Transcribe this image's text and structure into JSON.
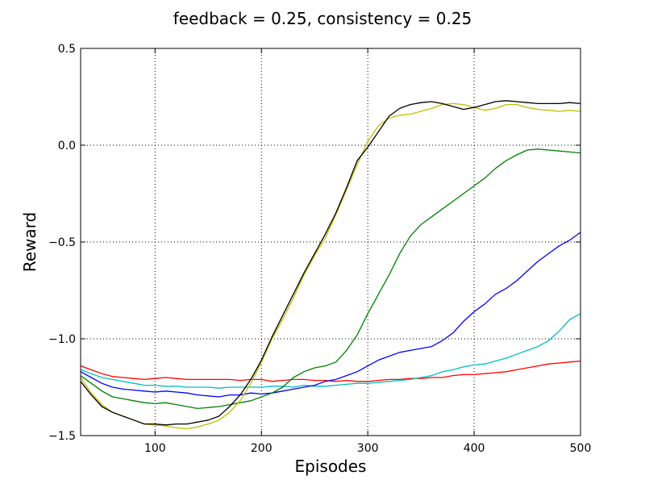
{
  "chart_data": {
    "type": "line",
    "title": "feedback = 0.25, consistency = 0.25",
    "xlabel": "Episodes",
    "ylabel": "Reward",
    "xlim": [
      30,
      500
    ],
    "ylim": [
      -1.5,
      0.5
    ],
    "xticks": [
      100,
      200,
      300,
      400,
      500
    ],
    "xtick_labels": [
      "100",
      "200",
      "300",
      "400",
      "500"
    ],
    "yticks": [
      -1.5,
      -1.0,
      -0.5,
      0.0,
      0.5
    ],
    "ytick_labels": [
      "−1.5",
      "−1.0",
      "−0.5",
      "0.0",
      "0.5"
    ],
    "grid": true,
    "grid_style": "dotted",
    "legend": "none",
    "x": [
      30,
      40,
      50,
      60,
      70,
      80,
      90,
      100,
      110,
      120,
      130,
      140,
      150,
      160,
      170,
      180,
      190,
      200,
      210,
      220,
      230,
      240,
      250,
      260,
      270,
      280,
      290,
      300,
      310,
      320,
      330,
      340,
      350,
      360,
      370,
      380,
      390,
      400,
      410,
      420,
      430,
      440,
      450,
      460,
      470,
      480,
      490,
      500
    ],
    "series": [
      {
        "color": "#ff0000",
        "values": [
          -1.14,
          -1.16,
          -1.18,
          -1.195,
          -1.2,
          -1.205,
          -1.21,
          -1.205,
          -1.2,
          -1.205,
          -1.21,
          -1.21,
          -1.21,
          -1.21,
          -1.21,
          -1.215,
          -1.21,
          -1.21,
          -1.22,
          -1.215,
          -1.21,
          -1.21,
          -1.215,
          -1.215,
          -1.22,
          -1.215,
          -1.22,
          -1.22,
          -1.215,
          -1.21,
          -1.21,
          -1.205,
          -1.205,
          -1.2,
          -1.2,
          -1.19,
          -1.185,
          -1.185,
          -1.18,
          -1.175,
          -1.17,
          -1.16,
          -1.15,
          -1.14,
          -1.13,
          -1.125,
          -1.12,
          -1.115
        ]
      },
      {
        "color": "#00bfbf",
        "values": [
          -1.16,
          -1.18,
          -1.2,
          -1.21,
          -1.22,
          -1.23,
          -1.24,
          -1.24,
          -1.245,
          -1.245,
          -1.25,
          -1.25,
          -1.25,
          -1.255,
          -1.25,
          -1.25,
          -1.25,
          -1.25,
          -1.245,
          -1.245,
          -1.25,
          -1.24,
          -1.245,
          -1.245,
          -1.24,
          -1.235,
          -1.23,
          -1.23,
          -1.225,
          -1.22,
          -1.215,
          -1.21,
          -1.2,
          -1.19,
          -1.17,
          -1.16,
          -1.145,
          -1.135,
          -1.13,
          -1.115,
          -1.1,
          -1.08,
          -1.06,
          -1.04,
          -1.01,
          -0.96,
          -0.9,
          -0.87
        ]
      },
      {
        "color": "#0000ff",
        "values": [
          -1.17,
          -1.2,
          -1.23,
          -1.25,
          -1.26,
          -1.265,
          -1.27,
          -1.275,
          -1.27,
          -1.275,
          -1.28,
          -1.29,
          -1.295,
          -1.3,
          -1.29,
          -1.29,
          -1.28,
          -1.285,
          -1.28,
          -1.27,
          -1.26,
          -1.25,
          -1.24,
          -1.22,
          -1.21,
          -1.19,
          -1.17,
          -1.14,
          -1.11,
          -1.09,
          -1.07,
          -1.06,
          -1.05,
          -1.04,
          -1.01,
          -0.97,
          -0.91,
          -0.86,
          -0.82,
          -0.77,
          -0.74,
          -0.7,
          -0.65,
          -0.6,
          -0.56,
          -0.52,
          -0.49,
          -0.45
        ]
      },
      {
        "color": "#008000",
        "values": [
          -1.19,
          -1.23,
          -1.27,
          -1.3,
          -1.31,
          -1.32,
          -1.33,
          -1.335,
          -1.33,
          -1.34,
          -1.35,
          -1.36,
          -1.355,
          -1.35,
          -1.34,
          -1.33,
          -1.32,
          -1.3,
          -1.28,
          -1.25,
          -1.2,
          -1.17,
          -1.15,
          -1.14,
          -1.12,
          -1.06,
          -0.98,
          -0.87,
          -0.77,
          -0.67,
          -0.56,
          -0.47,
          -0.41,
          -0.37,
          -0.33,
          -0.29,
          -0.25,
          -0.21,
          -0.17,
          -0.12,
          -0.08,
          -0.05,
          -0.025,
          -0.02,
          -0.025,
          -0.03,
          -0.035,
          -0.04
        ]
      },
      {
        "color": "#bfbf00",
        "values": [
          -1.2,
          -1.28,
          -1.34,
          -1.38,
          -1.4,
          -1.42,
          -1.44,
          -1.445,
          -1.45,
          -1.46,
          -1.465,
          -1.455,
          -1.44,
          -1.42,
          -1.38,
          -1.32,
          -1.23,
          -1.12,
          -1.0,
          -0.9,
          -0.79,
          -0.67,
          -0.57,
          -0.48,
          -0.36,
          -0.23,
          -0.1,
          0.02,
          0.1,
          0.14,
          0.155,
          0.16,
          0.175,
          0.19,
          0.21,
          0.215,
          0.21,
          0.195,
          0.18,
          0.19,
          0.21,
          0.21,
          0.195,
          0.185,
          0.18,
          0.175,
          0.18,
          0.175
        ]
      },
      {
        "color": "#000000",
        "values": [
          -1.22,
          -1.29,
          -1.35,
          -1.38,
          -1.4,
          -1.42,
          -1.44,
          -1.44,
          -1.445,
          -1.44,
          -1.44,
          -1.43,
          -1.42,
          -1.4,
          -1.35,
          -1.29,
          -1.21,
          -1.11,
          -0.99,
          -0.88,
          -0.77,
          -0.66,
          -0.56,
          -0.46,
          -0.35,
          -0.22,
          -0.08,
          -0.01,
          0.07,
          0.15,
          0.19,
          0.21,
          0.22,
          0.225,
          0.215,
          0.2,
          0.185,
          0.195,
          0.21,
          0.225,
          0.23,
          0.225,
          0.22,
          0.215,
          0.215,
          0.215,
          0.22,
          0.215
        ]
      }
    ]
  }
}
